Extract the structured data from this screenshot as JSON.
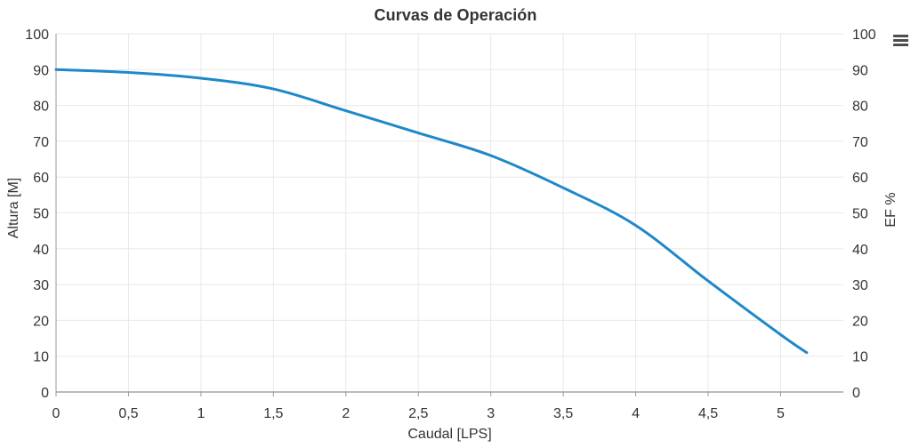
{
  "chart_data": {
    "type": "line",
    "title": "Curvas de Operación",
    "xlabel": "Caudal [LPS]",
    "ylabel_left": "Altura [M]",
    "ylabel_right": "EF %",
    "xlim": [
      0,
      5.39
    ],
    "ylim": [
      0,
      100
    ],
    "x_ticks": [
      0,
      0.5,
      1,
      1.5,
      2,
      2.5,
      3,
      3.5,
      4,
      4.5,
      5
    ],
    "x_tick_labels": [
      "0",
      "0,5",
      "1",
      "1,5",
      "2",
      "2,5",
      "3",
      "3,5",
      "4",
      "4,5",
      "5"
    ],
    "y_ticks": [
      0,
      10,
      20,
      30,
      40,
      50,
      60,
      70,
      80,
      90,
      100
    ],
    "grid": true,
    "legend": "none",
    "series": [
      {
        "name": "Altura",
        "color": "#1e88c9",
        "x": [
          0,
          0.5,
          1,
          1.5,
          2,
          2.5,
          3,
          3.5,
          4,
          4.5,
          5,
          5.18
        ],
        "y": [
          90,
          89.2,
          87.6,
          84.6,
          78.5,
          72.3,
          66,
          57,
          46.5,
          31,
          16,
          11
        ]
      }
    ],
    "colors": {
      "grid": "#e8e8e8",
      "axis_x": "#777777",
      "axis_y": "#999999",
      "tick": "#999999",
      "text": "#333333",
      "background": "#ffffff"
    }
  },
  "menu": {
    "icon_name": "hamburger-menu-icon"
  }
}
